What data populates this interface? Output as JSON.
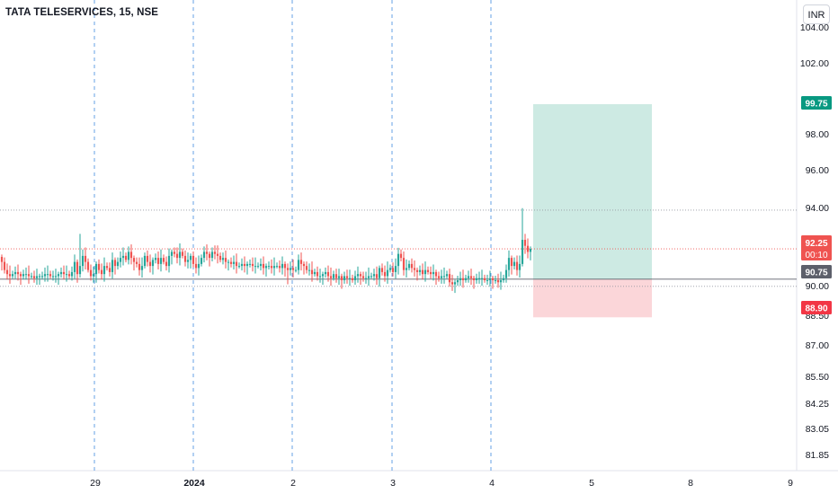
{
  "header": {
    "symbol_title": "TATA TELESERVICES, 15, NSE",
    "currency_button": "INR"
  },
  "colors": {
    "up": "#26a69a",
    "down": "#ef5350",
    "profit_zone": "#cdeae3",
    "loss_zone": "#fbd6d9",
    "session_line": "#4a90e2",
    "last_price_label": "#ef5350",
    "target_label": "#089981",
    "entry_label": "#5d606b",
    "stop_label": "#f23645"
  },
  "chart_data": {
    "type": "candlestick",
    "x_tick_labels": [
      "29",
      "2024",
      "2",
      "3",
      "4",
      "5",
      "8",
      "9"
    ],
    "y_tick_labels": [
      "104.00",
      "102.00",
      "98.00",
      "96.00",
      "94.00",
      "90.00",
      "88.50",
      "87.00",
      "85.50",
      "84.25",
      "83.05",
      "81.85"
    ],
    "y_scale": "log",
    "y_range": [
      81.2,
      104.8
    ],
    "price_labels": {
      "last_price": "92.25",
      "countdown": "00:10",
      "target": "99.75",
      "entry": "90.75",
      "stop": "88.90"
    },
    "horizontal_lines": [
      94.2,
      92.25,
      90.75,
      90.4
    ],
    "position": {
      "type": "long",
      "entry": 90.75,
      "target": 99.75,
      "stop": 88.9
    },
    "close_series": [
      91.6,
      91.2,
      91.0,
      90.9,
      91.0,
      91.1,
      91.0,
      90.9,
      91.0,
      91.0,
      90.9,
      90.9,
      90.8,
      90.9,
      90.9,
      90.9,
      91.0,
      91.0,
      90.9,
      90.9,
      90.9,
      91.0,
      91.1,
      91.0,
      91.0,
      90.9,
      91.1,
      91.6,
      91.0,
      91.4,
      91.9,
      91.6,
      91.2,
      90.9,
      91.0,
      91.5,
      91.2,
      91.0,
      91.4,
      91.3,
      91.1,
      91.7,
      91.4,
      91.6,
      91.8,
      91.9,
      91.7,
      92.1,
      91.8,
      91.6,
      91.5,
      91.2,
      91.4,
      91.9,
      91.6,
      91.4,
      91.7,
      91.8,
      91.5,
      91.8,
      91.6,
      91.4,
      91.9,
      92.1,
      92.0,
      91.8,
      92.1,
      91.9,
      91.6,
      91.7,
      91.9,
      91.5,
      91.3,
      91.5,
      91.8,
      92.1,
      92.0,
      91.8,
      92.1,
      92.0,
      91.9,
      91.7,
      91.8,
      91.6,
      91.6,
      91.5,
      91.6,
      91.4,
      91.4,
      91.5,
      91.4,
      91.5,
      91.5,
      91.4,
      91.4,
      91.4,
      91.5,
      91.3,
      91.4,
      91.4,
      91.3,
      91.4,
      91.4,
      91.3,
      91.5,
      91.3,
      91.2,
      91.3,
      91.2,
      91.2,
      91.7,
      91.5,
      91.4,
      91.2,
      91.2,
      91.0,
      91.1,
      90.9,
      90.9,
      91.0,
      91.1,
      90.9,
      90.8,
      91.0,
      90.8,
      90.9,
      90.7,
      90.9,
      90.8,
      90.8,
      90.7,
      90.9,
      91.0,
      90.9,
      90.8,
      90.8,
      90.9,
      90.9,
      91.0,
      90.8,
      91.3,
      91.1,
      90.9,
      91.2,
      91.3,
      91.1,
      91.4,
      92.0,
      91.8,
      91.2,
      91.3,
      91.5,
      91.3,
      91.2,
      91.1,
      91.2,
      91.0,
      91.2,
      91.1,
      91.0,
      91.1,
      90.9,
      90.8,
      90.9,
      90.9,
      91.0,
      90.6,
      90.5,
      90.6,
      90.7,
      90.8,
      90.7,
      90.8,
      90.9,
      90.8,
      90.7,
      90.8,
      90.8,
      90.8,
      90.7,
      90.7,
      90.8,
      90.7,
      90.7,
      90.6,
      90.7,
      90.8,
      91.2,
      91.8,
      91.4,
      91.6,
      91.2,
      91.5,
      92.7,
      92.4,
      92.1,
      92.25
    ]
  }
}
